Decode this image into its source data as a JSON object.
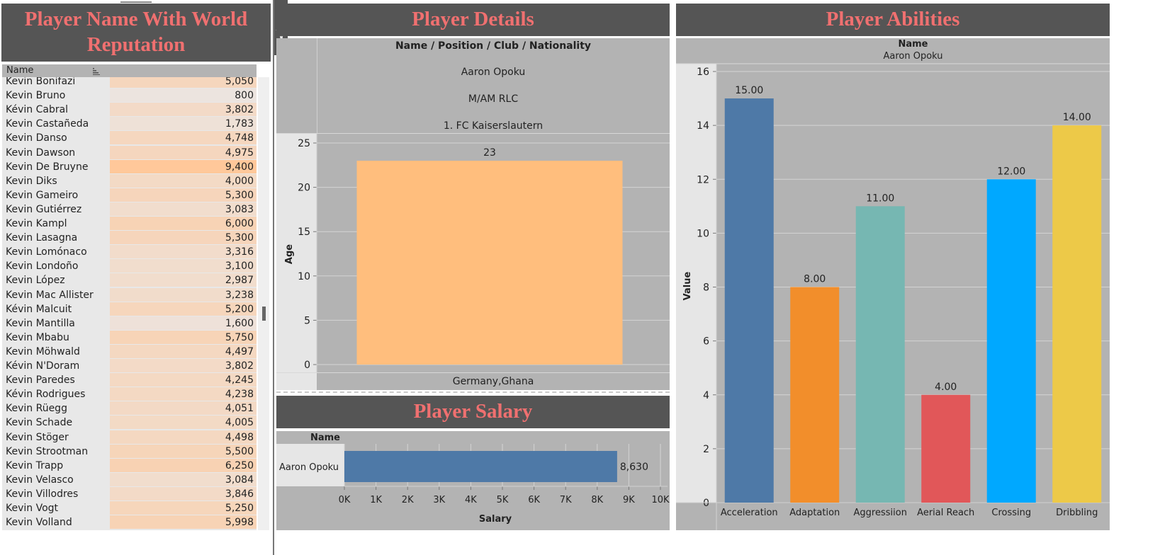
{
  "left_panel": {
    "title": "Player Name With World Reputation",
    "column_header": "Name",
    "rows": [
      {
        "name": "Kevin Bonifazi",
        "value": "5,050",
        "num": 5050
      },
      {
        "name": "Kevin Bruno",
        "value": "800",
        "num": 800
      },
      {
        "name": "Kévin Cabral",
        "value": "3,802",
        "num": 3802
      },
      {
        "name": "Kevin Castañeda",
        "value": "1,783",
        "num": 1783
      },
      {
        "name": "Kevin Danso",
        "value": "4,748",
        "num": 4748
      },
      {
        "name": "Kevin Dawson",
        "value": "4,975",
        "num": 4975
      },
      {
        "name": "Kevin De Bruyne",
        "value": "9,400",
        "num": 9400
      },
      {
        "name": "Kevin Diks",
        "value": "4,000",
        "num": 4000
      },
      {
        "name": "Kevin Gameiro",
        "value": "5,300",
        "num": 5300
      },
      {
        "name": "Kevin Gutiérrez",
        "value": "3,083",
        "num": 3083
      },
      {
        "name": "Kevin Kampl",
        "value": "6,000",
        "num": 6000
      },
      {
        "name": "Kevin Lasagna",
        "value": "5,300",
        "num": 5300
      },
      {
        "name": "Kevin Lomónaco",
        "value": "3,316",
        "num": 3316
      },
      {
        "name": "Kevin Londoño",
        "value": "3,100",
        "num": 3100
      },
      {
        "name": "Kevin López",
        "value": "2,987",
        "num": 2987
      },
      {
        "name": "Kevin Mac Allister",
        "value": "3,238",
        "num": 3238
      },
      {
        "name": "Kévin Malcuit",
        "value": "5,200",
        "num": 5200
      },
      {
        "name": "Kevin Mantilla",
        "value": "1,600",
        "num": 1600
      },
      {
        "name": "Kevin Mbabu",
        "value": "5,750",
        "num": 5750
      },
      {
        "name": "Kevin Möhwald",
        "value": "4,497",
        "num": 4497
      },
      {
        "name": "Kévin N'Doram",
        "value": "3,802",
        "num": 3802
      },
      {
        "name": "Kevin Paredes",
        "value": "4,245",
        "num": 4245
      },
      {
        "name": "Kévin Rodrigues",
        "value": "4,238",
        "num": 4238
      },
      {
        "name": "Kevin Rüegg",
        "value": "4,051",
        "num": 4051
      },
      {
        "name": "Kevin Schade",
        "value": "4,005",
        "num": 4005
      },
      {
        "name": "Kevin Stöger",
        "value": "4,498",
        "num": 4498
      },
      {
        "name": "Kevin Strootman",
        "value": "5,500",
        "num": 5500
      },
      {
        "name": "Kevin Trapp",
        "value": "6,250",
        "num": 6250
      },
      {
        "name": "Kevin Velasco",
        "value": "3,084",
        "num": 3084
      },
      {
        "name": "Kevin Villodres",
        "value": "3,846",
        "num": 3846
      },
      {
        "name": "Kevin Vogt",
        "value": "5,250",
        "num": 5250
      },
      {
        "name": "Kevin Volland",
        "value": "5,998",
        "num": 5998
      }
    ],
    "icons": [
      "popout-icon",
      "filter-icon",
      "dropdown-arrow-icon",
      "sort-icon"
    ]
  },
  "details_panel": {
    "title": "Player Details",
    "header": "Name / Position / Club / Nationality",
    "name": "Aaron Opoku",
    "position": "M/AM RLC",
    "club": "1. FC Kaiserslautern",
    "nationality": "Germany,Ghana"
  },
  "salary_panel": {
    "title": "Player Salary",
    "header": "Name"
  },
  "abilities_panel": {
    "title": "Player Abilities",
    "header": "Name",
    "player": "Aaron Opoku"
  },
  "colors": {
    "title_bg": "#555555",
    "title_text": "#f07070",
    "panel_bg": "#b3b3b3",
    "heat_low": "#ece4df",
    "heat_high": "#ffc89a"
  },
  "chart_data": [
    {
      "type": "bar",
      "categories": [
        "Germany,Ghana"
      ],
      "values": [
        23
      ],
      "data_labels": [
        "23"
      ],
      "ylabel": "Age",
      "ylim": [
        0,
        25
      ],
      "yticks": [
        0,
        5,
        10,
        15,
        20,
        25
      ],
      "color": "#ffbe7d",
      "grid": true
    },
    {
      "type": "bar",
      "orientation": "horizontal",
      "categories": [
        "Aaron Opoku"
      ],
      "values": [
        8630
      ],
      "data_labels": [
        "8,630"
      ],
      "xlabel": "Salary",
      "xlim": [
        0,
        10000
      ],
      "xtick_labels": [
        "0K",
        "1K",
        "2K",
        "3K",
        "4K",
        "5K",
        "6K",
        "7K",
        "8K",
        "9K",
        "10K"
      ],
      "color": "#4e79a7",
      "grid": true
    },
    {
      "type": "bar",
      "categories": [
        "Acceleration",
        "Adaptation",
        "Aggressiion",
        "Aerial Reach",
        "Crossing",
        "Dribbling"
      ],
      "values": [
        15,
        8,
        11,
        4,
        12,
        14
      ],
      "data_labels": [
        "15.00",
        "8.00",
        "11.00",
        "4.00",
        "12.00",
        "14.00"
      ],
      "colors": [
        "#4e79a7",
        "#f28e2b",
        "#76b7b2",
        "#e15759",
        "#00a8ff",
        "#edc948"
      ],
      "ylabel": "Value",
      "ylim": [
        0,
        16
      ],
      "yticks": [
        0,
        2,
        4,
        6,
        8,
        10,
        12,
        14,
        16
      ],
      "grid": true
    }
  ]
}
